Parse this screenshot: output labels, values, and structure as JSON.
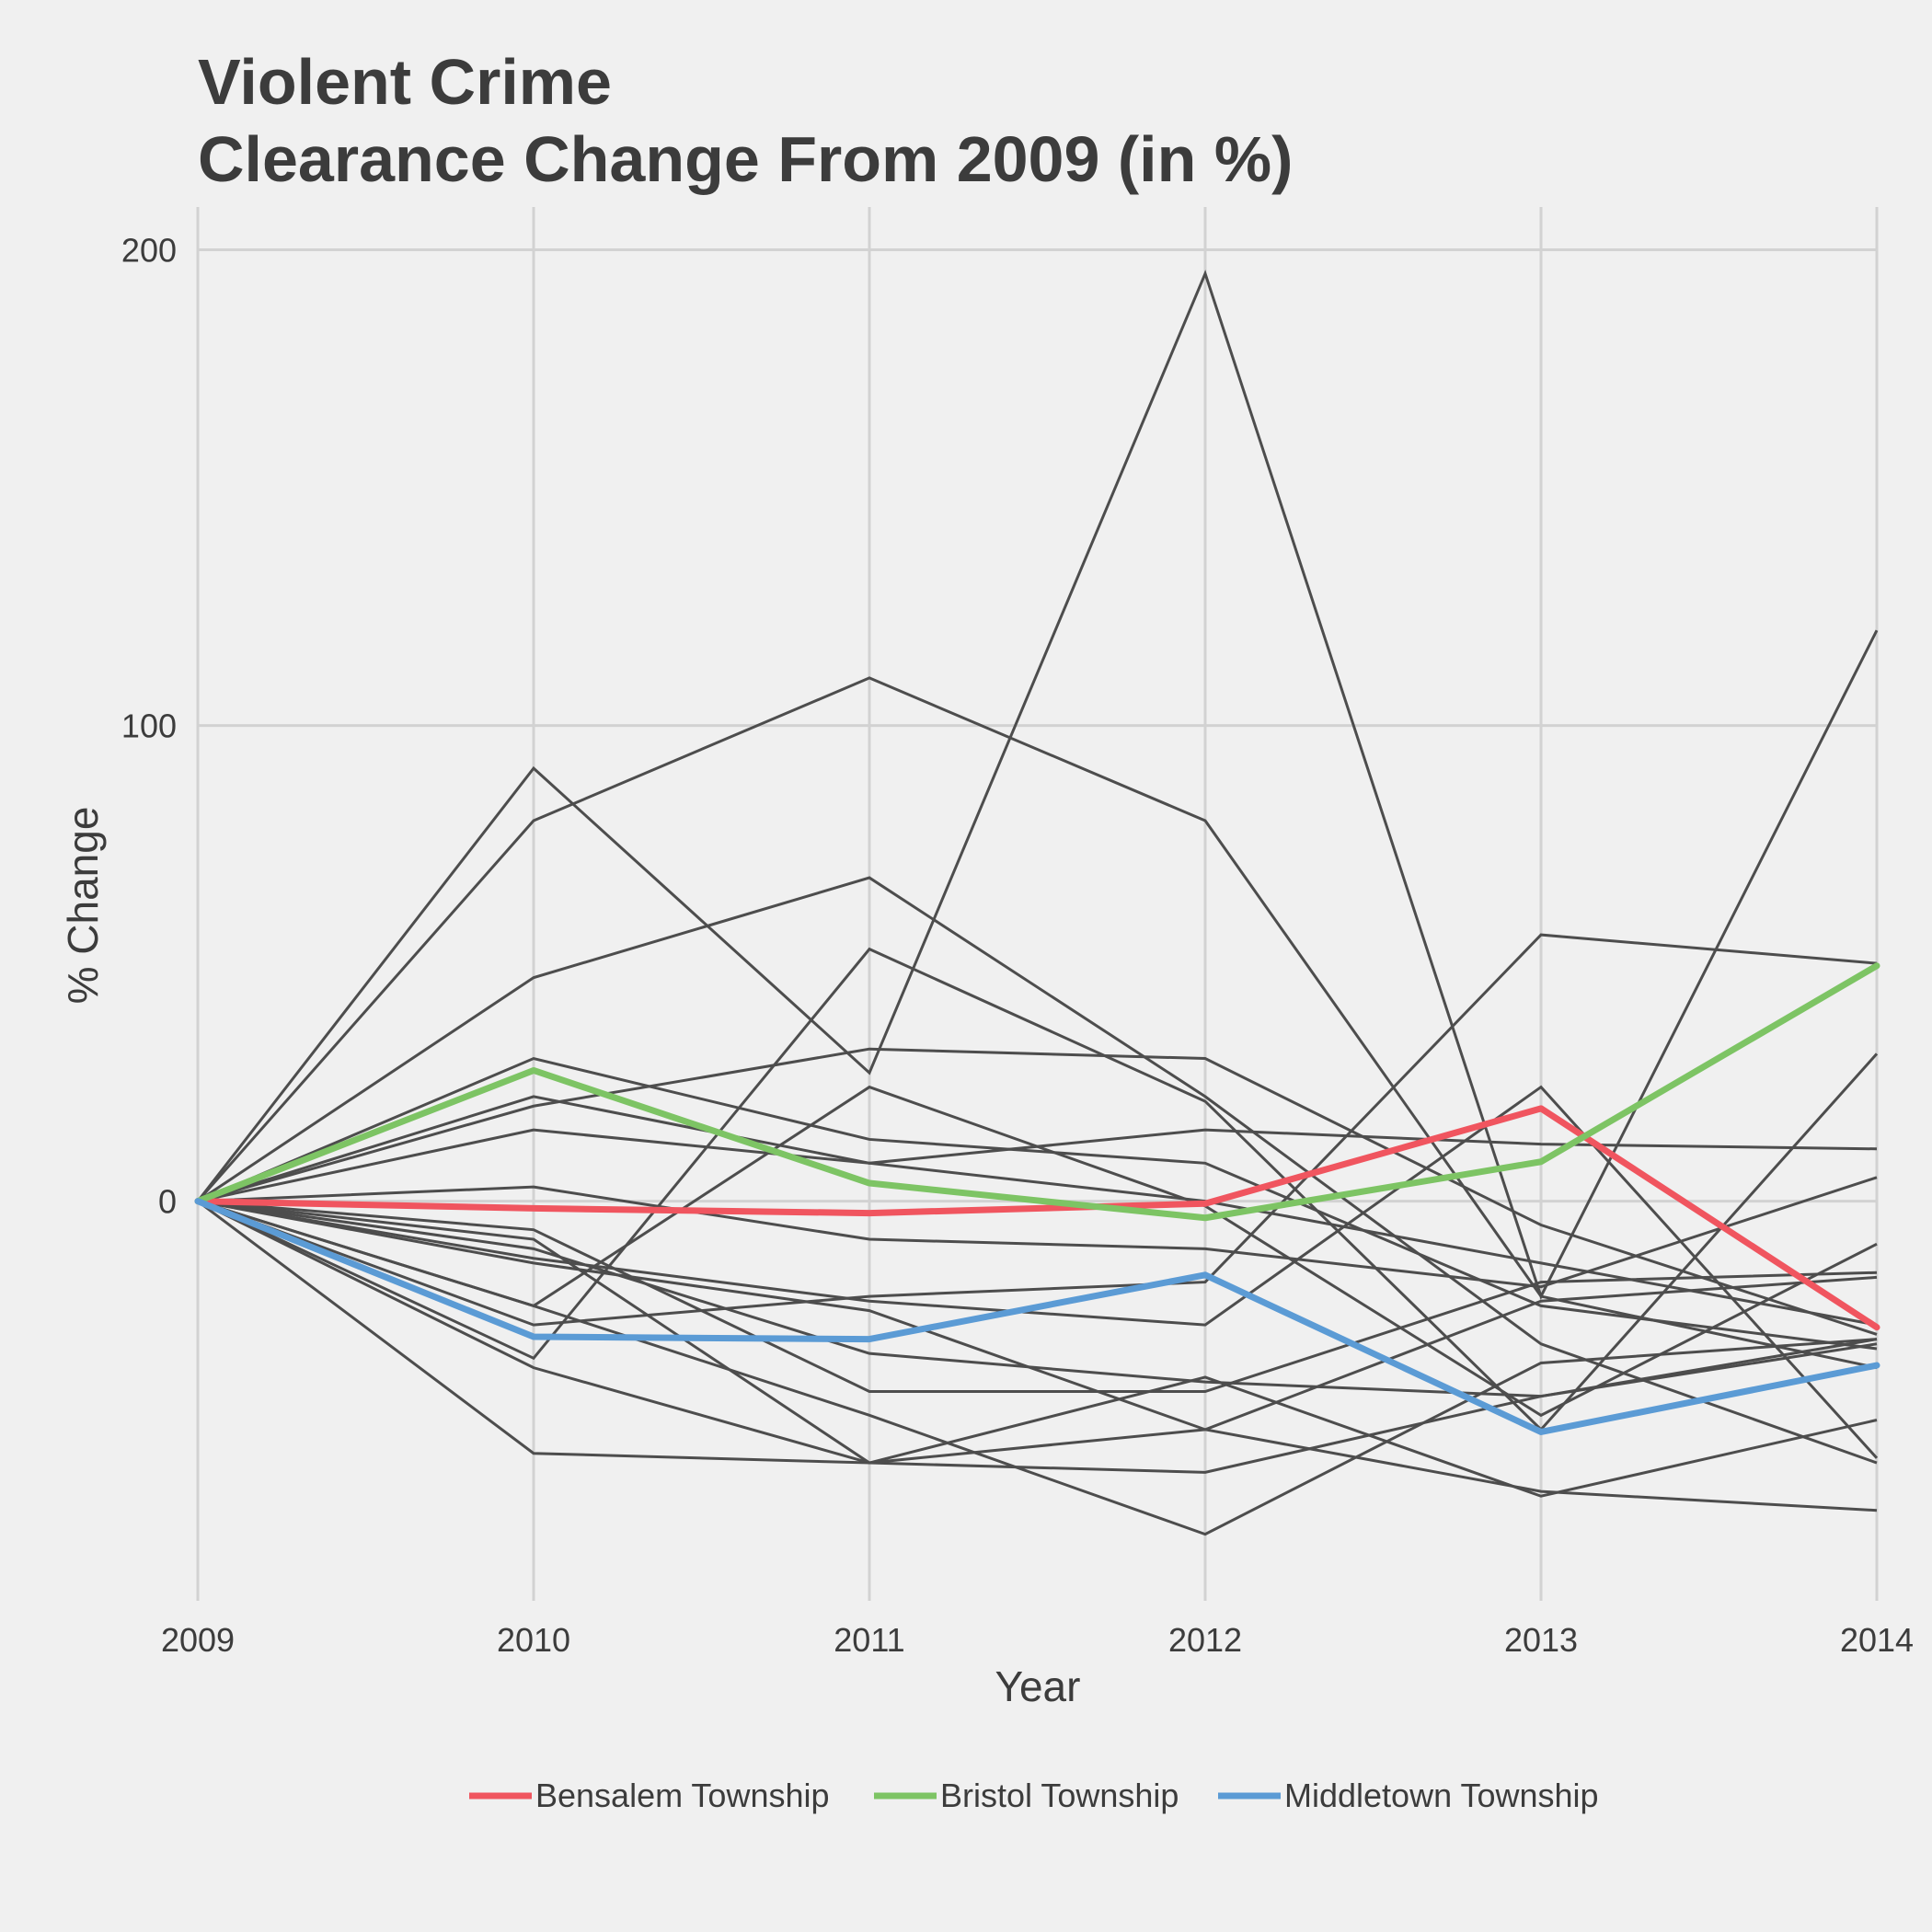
{
  "chart_data": {
    "type": "line",
    "title": [
      "Violent Crime",
      "Clearance Change From 2009 (in %)"
    ],
    "xlabel": "Year",
    "ylabel": "% Change",
    "x": [
      2009,
      2010,
      2011,
      2012,
      2013,
      2014
    ],
    "x_tick_labels": [
      "2009",
      "2010",
      "2011",
      "2012",
      "2013",
      "2014"
    ],
    "y_ticks": [
      0,
      100,
      200
    ],
    "y_tick_labels": [
      "0",
      "100",
      "200"
    ],
    "xlim": [
      2009,
      2014
    ],
    "ylim": [
      -84,
      209
    ],
    "grid": true,
    "legend_position": "bottom",
    "highlight_series": [
      {
        "name": "Bensalem Township",
        "color": "#f0555f",
        "values": [
          0,
          -1.5,
          -2.5,
          -0.5,
          19.5,
          -26.5
        ]
      },
      {
        "name": "Bristol Township",
        "color": "#7dc464",
        "values": [
          0,
          27.5,
          3.8,
          -3.5,
          8.3,
          49.5
        ]
      },
      {
        "name": "Middletown Township",
        "color": "#5b9bd5",
        "values": [
          0,
          -28.5,
          -29,
          -15.5,
          -48.5,
          -34.5
        ]
      }
    ],
    "other_series": [
      {
        "values": [
          0,
          91,
          27,
          195,
          -20,
          120
        ]
      },
      {
        "values": [
          0,
          80,
          110,
          80,
          -20,
          -35
        ]
      },
      {
        "values": [
          0,
          47,
          68,
          22,
          -30,
          -55
        ]
      },
      {
        "values": [
          0,
          30,
          13,
          8,
          -22,
          -31
        ]
      },
      {
        "values": [
          0,
          20,
          32,
          30,
          -5,
          -28
        ]
      },
      {
        "values": [
          0,
          22,
          8,
          15,
          12,
          11
        ]
      },
      {
        "values": [
          0,
          15,
          8,
          0,
          -13,
          -26
        ]
      },
      {
        "values": [
          0,
          -33,
          53,
          21,
          -48,
          31
        ]
      },
      {
        "values": [
          0,
          3,
          -8,
          -10,
          -18,
          5
        ]
      },
      {
        "values": [
          0,
          -6,
          -40,
          -40,
          -17,
          -15
        ]
      },
      {
        "values": [
          0,
          -22,
          24,
          -1,
          -45,
          -9
        ]
      },
      {
        "values": [
          0,
          -10,
          -32,
          -38,
          -41,
          -30
        ]
      },
      {
        "values": [
          0,
          -26,
          -20,
          -17,
          56,
          50
        ]
      },
      {
        "values": [
          0,
          -35,
          -55,
          -57,
          -41,
          -29
        ]
      },
      {
        "values": [
          0,
          -53,
          -55,
          -37,
          -62,
          -46
        ]
      },
      {
        "values": [
          0,
          -13,
          -23,
          -48,
          -61,
          -65
        ]
      },
      {
        "values": [
          0,
          -8,
          -55,
          -48,
          -21,
          -16
        ]
      },
      {
        "values": [
          0,
          -22,
          -45,
          -70,
          -34,
          -29
        ]
      },
      {
        "values": [
          0,
          -12,
          -21,
          -26,
          24,
          -54
        ]
      }
    ]
  }
}
